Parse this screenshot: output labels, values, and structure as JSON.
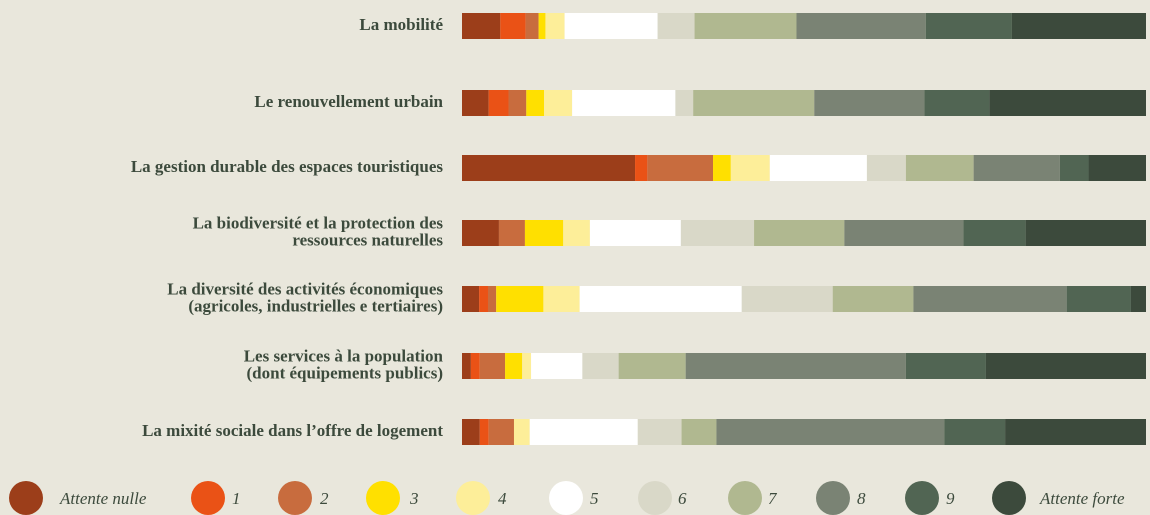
{
  "chart_data": {
    "type": "bar",
    "orientation": "horizontal",
    "stacked": true,
    "categories": [
      [
        "La mobilité"
      ],
      [
        "Le renouvellement urbain"
      ],
      [
        "La gestion durable des espaces touristiques"
      ],
      [
        "La biodiversité et la protection des",
        "ressources naturelles"
      ],
      [
        "La diversité des activités économiques",
        "(agricoles, industrielles e tertiaires)"
      ],
      [
        "Les services à la population",
        "(dont équipements publics)"
      ],
      [
        "La mixité sociale dans l’offre de logement"
      ]
    ],
    "xlim": [
      0,
      100
    ],
    "series": [
      {
        "name": "Attente nulle",
        "color": "#9c3e1a",
        "values": [
          5.6,
          3.9,
          25.3,
          5.4,
          2.5,
          1.3,
          2.6
        ]
      },
      {
        "name": "1",
        "color": "#ea5216",
        "values": [
          3.7,
          2.9,
          1.8,
          0,
          1.3,
          1.3,
          1.3
        ]
      },
      {
        "name": "2",
        "color": "#c86c3e",
        "values": [
          1.9,
          2.6,
          9.6,
          3.8,
          1.2,
          3.7,
          3.7
        ]
      },
      {
        "name": "3",
        "color": "#ffe000",
        "values": [
          1.0,
          2.6,
          2.6,
          5.6,
          6.9,
          2.5,
          0
        ]
      },
      {
        "name": "4",
        "color": "#fdee99",
        "values": [
          2.8,
          4.1,
          5.7,
          3.9,
          5.3,
          1.3,
          2.3
        ]
      },
      {
        "name": "5",
        "color": "#ffffff",
        "values": [
          13.6,
          15.1,
          14.2,
          13.3,
          23.7,
          7.5,
          15.8
        ]
      },
      {
        "name": "6",
        "color": "#d9d8c8",
        "values": [
          5.4,
          2.6,
          5.7,
          10.7,
          13.3,
          5.3,
          6.4
        ]
      },
      {
        "name": "7",
        "color": "#b0b890",
        "values": [
          14.9,
          17.7,
          9.9,
          13.2,
          11.8,
          9.8,
          5.1
        ]
      },
      {
        "name": "8",
        "color": "#7a8374",
        "values": [
          18.9,
          16.1,
          12.6,
          17.4,
          22.4,
          32.2,
          33.3
        ]
      },
      {
        "name": "9",
        "color": "#516553",
        "values": [
          12.6,
          9.5,
          4.2,
          9.1,
          9.4,
          11.7,
          8.9
        ]
      },
      {
        "name": "Attente forte",
        "color": "#3c4a3c",
        "values": [
          19.6,
          22.9,
          8.4,
          17.6,
          2.2,
          23.4,
          20.6
        ]
      }
    ]
  }
}
